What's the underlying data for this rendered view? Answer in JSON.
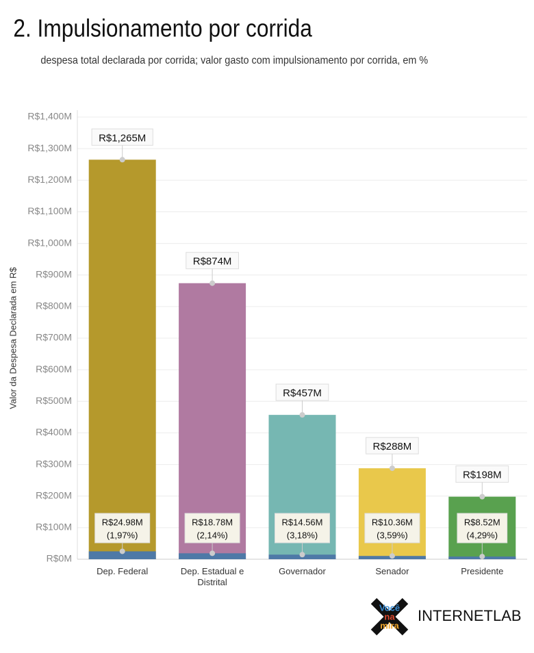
{
  "chart_data": {
    "type": "bar",
    "title": "2. Impulsionamento por corrida",
    "subtitle": "despesa total declarada por corrida; valor gasto com impulsionamento por corrida, em %",
    "y_label": "Valor da Despesa Declarada em R$",
    "categories": [
      "Dep. Federal",
      "Dep. Estadual e Distrital",
      "Governador",
      "Senador",
      "Presidente"
    ],
    "series": [
      {
        "colors": [
          "#b5992c",
          "#b07aa1",
          "#76b7b2",
          "#e9c84b",
          "#59a14f"
        ],
        "values": [
          1265,
          874,
          457,
          288,
          198
        ],
        "value_labels": [
          "R$1,265M",
          "R$874M",
          "R$457M",
          "R$288M",
          "R$198M"
        ]
      },
      {
        "color": "#4e79a7",
        "values": [
          24.98,
          18.78,
          14.56,
          10.36,
          8.52
        ],
        "value_labels": [
          "R$24.98M",
          "R$18.78M",
          "R$14.56M",
          "R$10.36M",
          "R$8.52M"
        ],
        "shares": [
          1.97,
          2.14,
          3.18,
          3.59,
          4.29
        ],
        "share_labels": [
          "(1,97%)",
          "(2,14%)",
          "(3,18%)",
          "(3,59%)",
          "(4,29%)"
        ]
      }
    ],
    "ylim": [
      0,
      1400
    ],
    "yticks": [
      {
        "value": 0,
        "label": "R$0M"
      },
      {
        "value": 100,
        "label": "R$100M"
      },
      {
        "value": 200,
        "label": "R$200M"
      },
      {
        "value": 300,
        "label": "R$300M"
      },
      {
        "value": 400,
        "label": "R$400M"
      },
      {
        "value": 500,
        "label": "R$500M"
      },
      {
        "value": 600,
        "label": "R$600M"
      },
      {
        "value": 700,
        "label": "R$700M"
      },
      {
        "value": 800,
        "label": "R$800M"
      },
      {
        "value": 900,
        "label": "R$900M"
      },
      {
        "value": 1000,
        "label": "R$1,000M"
      },
      {
        "value": 1100,
        "label": "R$1,100M"
      },
      {
        "value": 1200,
        "label": "R$1,200M"
      },
      {
        "value": 1300,
        "label": "R$1,300M"
      },
      {
        "value": 1400,
        "label": "R$1,400M"
      }
    ],
    "grid": true
  },
  "footer": {
    "logo_words": [
      "Você",
      "na",
      "mira"
    ],
    "brand": "INTERNETLAB"
  }
}
